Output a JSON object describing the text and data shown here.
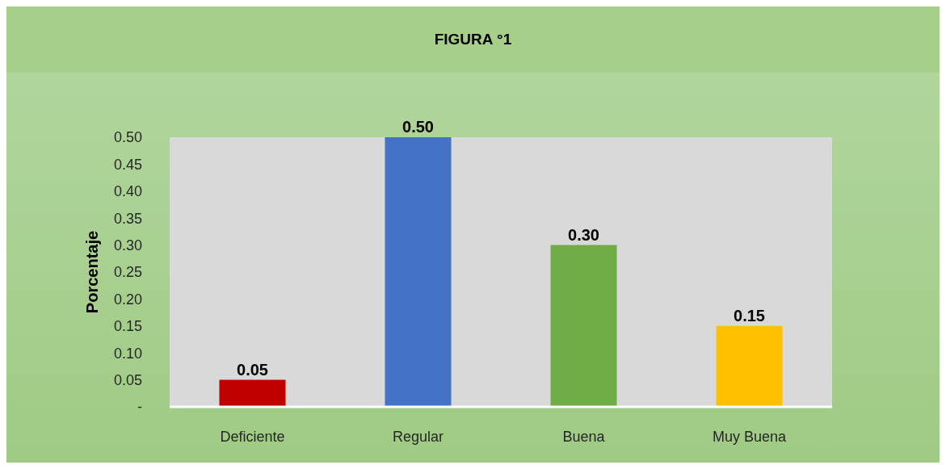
{
  "chart_data": {
    "type": "bar",
    "title": "FIGURA °1",
    "ylabel": "Porcentaje",
    "categories": [
      "Deficiente",
      "Regular",
      "Buena",
      "Muy Buena"
    ],
    "values": [
      0.05,
      0.5,
      0.3,
      0.15
    ],
    "colors": [
      "#c00000",
      "#4472c4",
      "#70ad47",
      "#ffc000"
    ],
    "value_labels": [
      "0.05",
      "0.50",
      "0.30",
      "0.15"
    ],
    "ylim": [
      0,
      0.5
    ],
    "yticks": [
      {
        "value": 0,
        "label": "-"
      },
      0.05,
      {
        "value": 0.1,
        "label": "0.10"
      },
      0.15,
      {
        "value": 0.2,
        "label": "0.20"
      },
      0.25,
      {
        "value": 0.3,
        "label": "0.30"
      },
      0.35,
      {
        "value": 0.4,
        "label": "0.40"
      },
      0.45,
      {
        "value": 0.5,
        "label": "0.50"
      }
    ],
    "grid": false,
    "legend": false
  }
}
